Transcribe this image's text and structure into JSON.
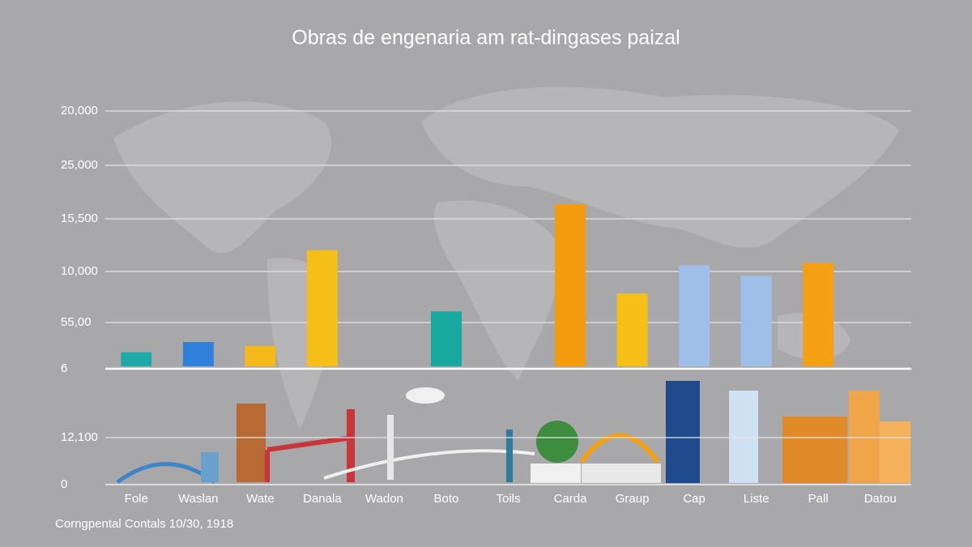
{
  "chart_data": {
    "type": "bar",
    "title": "Obras de engenaria am rat-dingases paizal",
    "footer": "Corngpental Contals 10/30, 1918",
    "categories": [
      "Fole",
      "Waslan",
      "Wate",
      "Danala",
      "Wadon",
      "Boto",
      "Toils",
      "Carda",
      "Graup",
      "Cap",
      "Liste",
      "Pall",
      "Datou"
    ],
    "values": [
      1100,
      1900,
      1600,
      9100,
      null,
      4300,
      null,
      12700,
      5700,
      7900,
      7100,
      8100,
      null
    ],
    "colors": [
      "#1fa9a6",
      "#2f80d8",
      "#f5b91c",
      "#f6bf18",
      "#f6bf18",
      "#17a89f",
      "#f6bf18",
      "#f59c0e",
      "#f6bf18",
      "#9fbfe9",
      "#9fbfe9",
      "#f5a012",
      "#f5a012"
    ],
    "ylim": [
      0,
      20000
    ],
    "y_axis_labels": [
      "20,000",
      "25,000",
      "15,500",
      "10,000",
      "55,00",
      "6",
      "12,100",
      "0"
    ],
    "grid": true
  }
}
